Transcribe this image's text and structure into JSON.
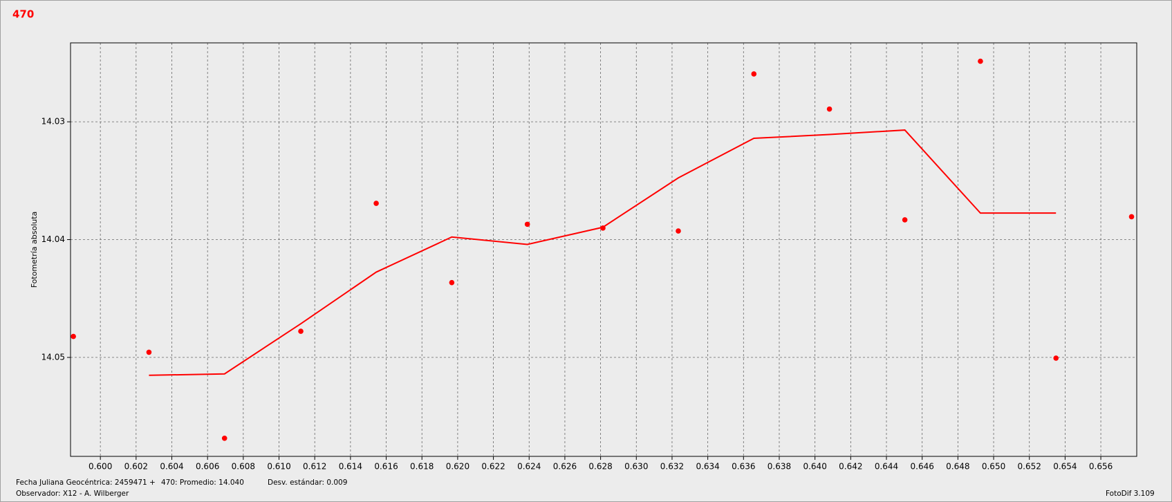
{
  "chart_data": {
    "type": "scatter",
    "title": "470",
    "y_label": "Fotometría absoluta",
    "xlim": [
      0.59833,
      0.65801
    ],
    "ylim": [
      14.0584,
      14.0233
    ],
    "inverted_y": true,
    "grid": true,
    "xticks": [
      {
        "value": 0.6,
        "label": "0.600"
      },
      0.602,
      0.604,
      0.606,
      0.608,
      {
        "value": 0.61,
        "label": "0.610"
      },
      0.612,
      0.614,
      0.616,
      0.618,
      {
        "value": 0.62,
        "label": "0.620"
      },
      0.622,
      0.624,
      0.626,
      0.628,
      {
        "value": 0.63,
        "label": "0.630"
      },
      0.632,
      0.634,
      0.636,
      0.638,
      {
        "value": 0.64,
        "label": "0.640"
      },
      0.642,
      0.644,
      0.646,
      0.648,
      {
        "value": 0.65,
        "label": "0.650"
      },
      0.652,
      0.654,
      0.656
    ],
    "yticks": [
      14.03,
      14.04,
      14.05
    ],
    "series": [
      {
        "type": "scatter",
        "color": "#ff0000",
        "x": [
          0.59849,
          0.60272,
          0.60695,
          0.61122,
          0.61544,
          0.61967,
          0.6239,
          0.62813,
          0.63235,
          0.63658,
          0.64081,
          0.64503,
          0.64926,
          0.65349,
          0.65772
        ],
        "values": [
          14.04822,
          14.04956,
          14.05686,
          14.04778,
          14.03692,
          14.04365,
          14.0387,
          14.03902,
          14.03927,
          14.02594,
          14.02892,
          14.03832,
          14.02486,
          14.05006,
          14.03806
        ]
      },
      {
        "type": "line",
        "color": "#ff0000",
        "x": [
          0.60272,
          0.60695,
          0.61122,
          0.61544,
          0.61967,
          0.6239,
          0.62813,
          0.63235,
          0.63658,
          0.64081,
          0.64503,
          0.64926,
          0.65349
        ],
        "values": [
          14.05152,
          14.0514,
          14.04714,
          14.04276,
          14.03978,
          14.04041,
          14.03895,
          14.03476,
          14.0314,
          14.03108,
          14.0307,
          14.03775,
          14.03775
        ]
      }
    ],
    "footer": {
      "date_label": "Fecha Juliana Geocéntrica: 2459471 +",
      "mean": "470: Promedio: 14.040",
      "std": "Desv. estándar: 0.009",
      "observer": "Observador: X12 - A. Wilberger",
      "software": "FotoDif 3.109"
    }
  }
}
